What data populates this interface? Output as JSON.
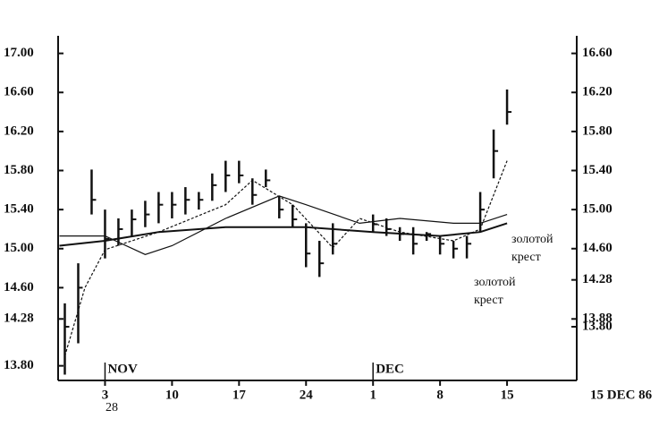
{
  "chart_data": {
    "type": "ohlc",
    "ylim": [
      13.65,
      17.18
    ],
    "yticks": [
      {
        "value": 17,
        "label": "17.00"
      },
      {
        "value": 16.6,
        "label": "16.60"
      },
      {
        "value": 16.2,
        "label": "16.20"
      },
      {
        "value": 15.8,
        "label": "15.80"
      },
      {
        "value": 15.4,
        "label": "15.40"
      },
      {
        "value": 15,
        "label": "15.00"
      },
      {
        "value": 14.6,
        "label": "14.60"
      },
      14.28,
      {
        "value": 13.8,
        "label": "13.80"
      }
    ],
    "y2lim": [
      13.25,
      16.78
    ],
    "y2ticks": [
      {
        "value": 16.6,
        "label": "16.60"
      },
      {
        "value": 16.2,
        "label": "16.20"
      },
      {
        "value": 15.8,
        "label": "15.80"
      },
      {
        "value": 15.4,
        "label": "15.40"
      },
      {
        "value": 15,
        "label": "15.00"
      },
      {
        "value": 14.6,
        "label": "14.60"
      },
      14.28,
      {
        "value": 13.8,
        "label": "13.80"
      },
      13.88
    ],
    "xlim": [
      -3.5,
      35.2
    ],
    "xticks": [
      {
        "value": 0,
        "label": "3"
      },
      {
        "value": 5,
        "label": "10"
      },
      {
        "value": 10,
        "label": "17"
      },
      {
        "value": 15,
        "label": "24"
      },
      {
        "value": 20,
        "label": "1"
      },
      {
        "value": 25,
        "label": "8"
      },
      {
        "value": 30,
        "label": "15"
      }
    ],
    "x_label": "15 DEC 86",
    "month_labels": [
      {
        "x": 0,
        "label": "NOV"
      },
      {
        "x": 20,
        "label": "DEC"
      }
    ],
    "color": "#111111",
    "bars": {
      "x": [
        -3,
        -2,
        -1,
        0,
        1,
        2,
        3,
        4,
        5,
        6,
        7,
        8,
        9,
        10,
        11,
        12,
        13,
        14,
        15,
        16,
        17,
        20,
        21,
        22,
        23,
        24,
        25,
        26,
        27,
        28,
        29,
        30
      ],
      "high": [
        14.44,
        14.85,
        15.81,
        15.4,
        15.31,
        15.4,
        15.49,
        15.58,
        15.58,
        15.63,
        15.58,
        15.77,
        15.9,
        15.9,
        15.72,
        15.81,
        15.54,
        15.45,
        15.26,
        15.08,
        15.26,
        15.35,
        15.31,
        15.22,
        15.22,
        15.17,
        15.13,
        15.08,
        15.13,
        15.58,
        16.22,
        16.63
      ],
      "low": [
        13.71,
        14.03,
        15.35,
        14.9,
        15.03,
        15.13,
        15.22,
        15.26,
        15.31,
        15.35,
        15.4,
        15.49,
        15.58,
        15.67,
        15.45,
        15.63,
        15.31,
        15.22,
        14.81,
        14.71,
        14.94,
        15.17,
        15.13,
        15.08,
        14.94,
        15.08,
        14.94,
        14.9,
        14.9,
        15.17,
        15.72,
        16.27
      ],
      "close": [
        14.2,
        14.6,
        15.5,
        15.1,
        15.2,
        15.3,
        15.35,
        15.45,
        15.45,
        15.5,
        15.5,
        15.65,
        15.75,
        15.75,
        15.55,
        15.7,
        15.4,
        15.3,
        14.95,
        14.85,
        15.05,
        15.25,
        15.2,
        15.15,
        15.05,
        15.15,
        15.05,
        15.0,
        15.05,
        15.4,
        16.0,
        16.4
      ]
    },
    "lines": [
      {
        "x": [
          -3.4,
          0,
          4,
          9,
          15,
          20,
          25,
          28,
          30
        ],
        "values": [
          15.03,
          15.08,
          15.17,
          15.22,
          15.22,
          15.17,
          15.13,
          15.17,
          15.26
        ]
      },
      {
        "x": [
          -3.4,
          0,
          3,
          5,
          9,
          13,
          15,
          19,
          22,
          26,
          28,
          30
        ],
        "values": [
          15.13,
          15.13,
          14.94,
          15.03,
          15.31,
          15.54,
          15.45,
          15.26,
          15.31,
          15.26,
          15.26,
          15.35
        ]
      },
      {
        "x": [
          -3,
          -1.5,
          0,
          4,
          9,
          11,
          14,
          17,
          19,
          22,
          26,
          28,
          30
        ],
        "values": [
          13.9,
          14.6,
          14.99,
          15.17,
          15.45,
          15.7,
          15.45,
          15.01,
          15.31,
          15.17,
          15.08,
          15.2,
          15.9
        ]
      }
    ],
    "annotations": [
      "золотой",
      "крест",
      "золотой",
      "крест"
    ]
  },
  "page_number": "28"
}
